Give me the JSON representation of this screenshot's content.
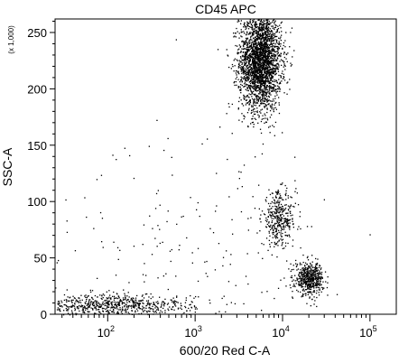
{
  "chart_data": {
    "type": "scatter",
    "title": "CD45 APC",
    "xlabel": "600/20 Red C-A",
    "ylabel": "SSC-A",
    "y_multiplier_label": "(x 1,000)",
    "x_scale": "log",
    "xlim": [
      25,
      200000
    ],
    "ylim": [
      0,
      262
    ],
    "x_decade_ticks": [
      {
        "value": 100,
        "base": "10",
        "exp": "2"
      },
      {
        "value": 1000,
        "base": "10",
        "exp": "3"
      },
      {
        "value": 10000,
        "base": "10",
        "exp": "4"
      },
      {
        "value": 100000,
        "base": "10",
        "exp": "5"
      }
    ],
    "y_ticks": [
      0,
      50,
      100,
      150,
      200,
      250
    ],
    "y_tick_labels": [
      "0",
      "50",
      "100",
      "150",
      "200",
      "250"
    ],
    "grid": false,
    "point_color": "#000000",
    "populations": [
      {
        "center_x": 5500,
        "center_y": 225,
        "spread_logx": 0.12,
        "spread_y": 22,
        "count": 2600
      },
      {
        "center_x": 9000,
        "center_y": 85,
        "spread_logx": 0.1,
        "spread_y": 12,
        "count": 380
      },
      {
        "center_x": 20000,
        "center_y": 32,
        "spread_logx": 0.08,
        "spread_y": 7,
        "count": 520
      },
      {
        "center_x": 120,
        "center_y": 8,
        "spread_logx": 0.45,
        "spread_y": 5,
        "count": 700
      },
      {
        "center_x": 800,
        "center_y": 60,
        "spread_logx": 0.9,
        "spread_y": 60,
        "count": 220
      }
    ]
  }
}
